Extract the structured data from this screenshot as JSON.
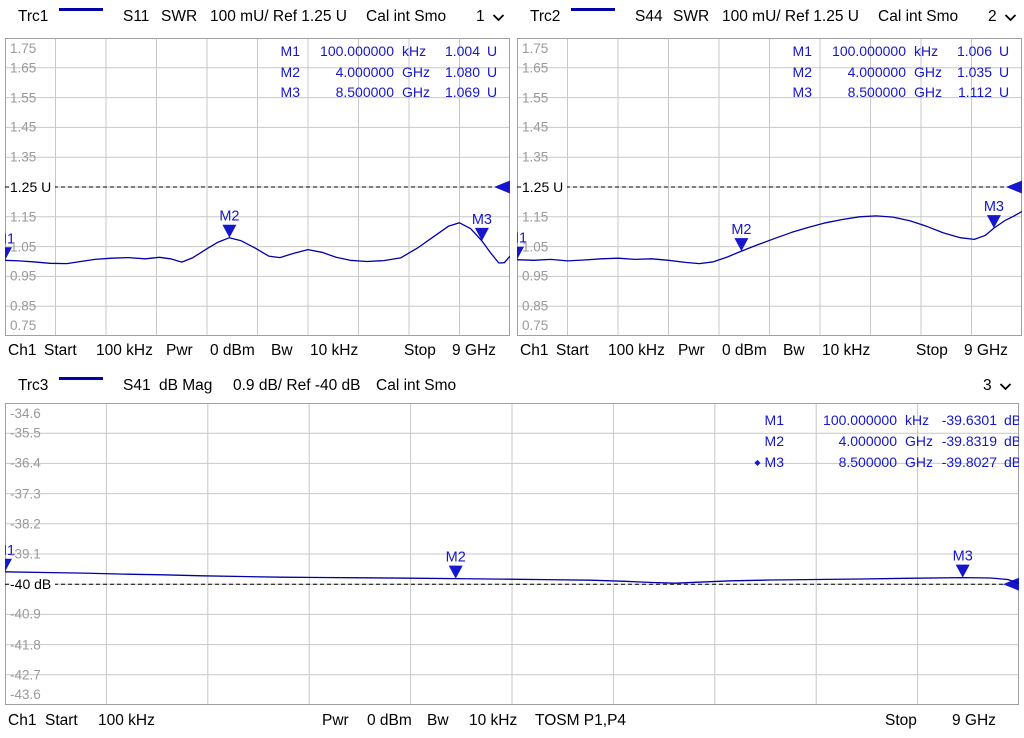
{
  "colors": {
    "trace": "#0000A8",
    "marker": "#1616CE",
    "grid": "#C8C8C8",
    "plot_border": "#A0A0A0",
    "axis_label": "#9A9A9A",
    "ref_line": "#000000",
    "text": "#000000",
    "background": "#FFFFFF"
  },
  "panels": [
    {
      "header": {
        "trace_label": "Trc1",
        "s_param": "S11",
        "format": "SWR",
        "scale": "100 mU/ Ref 1.25 U",
        "cal": "Cal int Smo",
        "channel": "1"
      },
      "axis": {
        "top": 1.75,
        "step": 0.1,
        "ref_value": 1.25,
        "ref_index": 5,
        "f_stop_ghz": 9,
        "labels": [
          "1.75",
          "1.65",
          "1.55",
          "1.45",
          "1.35",
          "1.25 U",
          "1.15",
          "1.05",
          "0.95",
          "0.85",
          "0.75"
        ]
      },
      "markers": [
        {
          "name": "M1",
          "freq_ghz": 0.0001,
          "value": 1.004,
          "freq_text": "100.000000",
          "freq_unit": "kHz",
          "value_text": "1.004",
          "value_unit": "U",
          "active": false
        },
        {
          "name": "M2",
          "freq_ghz": 4.0,
          "value": 1.08,
          "freq_text": "4.000000",
          "freq_unit": "GHz",
          "value_text": "1.080",
          "value_unit": "U",
          "active": false
        },
        {
          "name": "M3",
          "freq_ghz": 8.5,
          "value": 1.069,
          "freq_text": "8.500000",
          "freq_unit": "GHz",
          "value_text": "1.069",
          "value_unit": "U",
          "active": false
        }
      ],
      "trace": [
        [
          0,
          1.004
        ],
        [
          0.25,
          1.002
        ],
        [
          0.5,
          0.999
        ],
        [
          0.8,
          0.994
        ],
        [
          1.1,
          0.993
        ],
        [
          1.35,
          1.0
        ],
        [
          1.6,
          1.007
        ],
        [
          1.9,
          1.011
        ],
        [
          2.2,
          1.013
        ],
        [
          2.5,
          1.009
        ],
        [
          2.75,
          1.014
        ],
        [
          2.95,
          1.009
        ],
        [
          3.15,
          0.998
        ],
        [
          3.35,
          1.013
        ],
        [
          3.6,
          1.043
        ],
        [
          3.8,
          1.065
        ],
        [
          4.0,
          1.08
        ],
        [
          4.2,
          1.07
        ],
        [
          4.45,
          1.046
        ],
        [
          4.7,
          1.018
        ],
        [
          4.9,
          1.013
        ],
        [
          5.15,
          1.028
        ],
        [
          5.4,
          1.04
        ],
        [
          5.65,
          1.031
        ],
        [
          5.9,
          1.014
        ],
        [
          6.15,
          1.004
        ],
        [
          6.45,
          1.0
        ],
        [
          6.75,
          1.003
        ],
        [
          7.05,
          1.012
        ],
        [
          7.35,
          1.045
        ],
        [
          7.65,
          1.085
        ],
        [
          7.9,
          1.118
        ],
        [
          8.1,
          1.13
        ],
        [
          8.3,
          1.11
        ],
        [
          8.5,
          1.069
        ],
        [
          8.65,
          1.03
        ],
        [
          8.8,
          0.995
        ],
        [
          8.9,
          0.996
        ],
        [
          9.0,
          1.018
        ]
      ],
      "footer": [
        "Ch1",
        "Start",
        "100 kHz",
        "Pwr",
        "0 dBm",
        "Bw",
        "10 kHz",
        "Stop",
        "9 GHz"
      ]
    },
    {
      "header": {
        "trace_label": "Trc2",
        "s_param": "S44",
        "format": "SWR",
        "scale": "100 mU/ Ref 1.25 U",
        "cal": "Cal int Smo",
        "channel": "2"
      },
      "axis": {
        "top": 1.75,
        "step": 0.1,
        "ref_value": 1.25,
        "ref_index": 5,
        "f_stop_ghz": 9,
        "labels": [
          "1.75",
          "1.65",
          "1.55",
          "1.45",
          "1.35",
          "1.25 U",
          "1.15",
          "1.05",
          "0.95",
          "0.85",
          "0.75"
        ]
      },
      "markers": [
        {
          "name": "M1",
          "freq_ghz": 0.0001,
          "value": 1.006,
          "freq_text": "100.000000",
          "freq_unit": "kHz",
          "value_text": "1.006",
          "value_unit": "U",
          "active": false
        },
        {
          "name": "M2",
          "freq_ghz": 4.0,
          "value": 1.035,
          "freq_text": "4.000000",
          "freq_unit": "GHz",
          "value_text": "1.035",
          "value_unit": "U",
          "active": false
        },
        {
          "name": "M3",
          "freq_ghz": 8.5,
          "value": 1.112,
          "freq_text": "8.500000",
          "freq_unit": "GHz",
          "value_text": "1.112",
          "value_unit": "U",
          "active": false
        }
      ],
      "trace": [
        [
          0,
          1.006
        ],
        [
          0.3,
          1.004
        ],
        [
          0.6,
          1.007
        ],
        [
          0.9,
          1.002
        ],
        [
          1.2,
          1.005
        ],
        [
          1.5,
          1.009
        ],
        [
          1.8,
          1.011
        ],
        [
          2.1,
          1.007
        ],
        [
          2.4,
          1.009
        ],
        [
          2.7,
          1.004
        ],
        [
          3.0,
          0.997
        ],
        [
          3.25,
          0.993
        ],
        [
          3.5,
          0.999
        ],
        [
          3.75,
          1.015
        ],
        [
          4.0,
          1.035
        ],
        [
          4.3,
          1.057
        ],
        [
          4.6,
          1.078
        ],
        [
          4.9,
          1.098
        ],
        [
          5.2,
          1.115
        ],
        [
          5.5,
          1.13
        ],
        [
          5.8,
          1.141
        ],
        [
          6.1,
          1.15
        ],
        [
          6.4,
          1.153
        ],
        [
          6.7,
          1.149
        ],
        [
          7.0,
          1.137
        ],
        [
          7.3,
          1.118
        ],
        [
          7.6,
          1.096
        ],
        [
          7.9,
          1.08
        ],
        [
          8.15,
          1.074
        ],
        [
          8.35,
          1.088
        ],
        [
          8.5,
          1.112
        ],
        [
          8.7,
          1.138
        ],
        [
          8.85,
          1.152
        ],
        [
          9.0,
          1.168
        ]
      ],
      "footer": [
        "Ch1",
        "Start",
        "100 kHz",
        "Pwr",
        "0 dBm",
        "Bw",
        "10 kHz",
        "Stop",
        "9 GHz"
      ]
    },
    {
      "header": {
        "trace_label": "Trc3",
        "s_param": "S41",
        "format": "dB Mag",
        "scale": "0.9 dB/ Ref -40 dB",
        "cal": "Cal int Smo",
        "channel": "3"
      },
      "axis": {
        "top": -34.6,
        "step": 0.9,
        "ref_value": -40,
        "ref_index": 6,
        "f_stop_ghz": 9,
        "labels": [
          "-34.6",
          "-35.5",
          "-36.4",
          "-37.3",
          "-38.2",
          "-39.1",
          "-40 dB",
          "-40.9",
          "-41.8",
          "-42.7",
          "-43.6"
        ]
      },
      "markers": [
        {
          "name": "M1",
          "freq_ghz": 0.0001,
          "value": -39.6301,
          "freq_text": "100.000000",
          "freq_unit": "kHz",
          "value_text": "-39.6301",
          "value_unit": "dB",
          "active": false
        },
        {
          "name": "M2",
          "freq_ghz": 4.0,
          "value": -39.8319,
          "freq_text": "4.000000",
          "freq_unit": "GHz",
          "value_text": "-39.8319",
          "value_unit": "dB",
          "active": false
        },
        {
          "name": "M3",
          "freq_ghz": 8.5,
          "value": -39.8027,
          "freq_text": "8.500000",
          "freq_unit": "GHz",
          "value_text": "-39.8027",
          "value_unit": "dB",
          "active": true
        }
      ],
      "trace": [
        [
          0,
          -39.63
        ],
        [
          0.35,
          -39.65
        ],
        [
          0.7,
          -39.67
        ],
        [
          1.05,
          -39.7
        ],
        [
          1.4,
          -39.72
        ],
        [
          1.75,
          -39.75
        ],
        [
          2.1,
          -39.77
        ],
        [
          2.45,
          -39.79
        ],
        [
          2.8,
          -39.8
        ],
        [
          3.2,
          -39.81
        ],
        [
          3.6,
          -39.82
        ],
        [
          4.0,
          -39.8319
        ],
        [
          4.4,
          -39.848
        ],
        [
          4.8,
          -39.862
        ],
        [
          5.2,
          -39.88
        ],
        [
          5.5,
          -39.915
        ],
        [
          5.75,
          -39.95
        ],
        [
          5.95,
          -39.97
        ],
        [
          6.15,
          -39.94
        ],
        [
          6.45,
          -39.9
        ],
        [
          6.8,
          -39.875
        ],
        [
          7.2,
          -39.86
        ],
        [
          7.6,
          -39.845
        ],
        [
          8.0,
          -39.825
        ],
        [
          8.5,
          -39.8027
        ],
        [
          8.75,
          -39.815
        ],
        [
          8.9,
          -39.86
        ],
        [
          9.0,
          -39.97
        ]
      ],
      "footer": [
        "Ch1",
        "Start",
        "100 kHz",
        "Pwr",
        "0 dBm",
        "Bw",
        "10 kHz",
        "TOSM P1,P4",
        "Stop",
        "9 GHz"
      ]
    }
  ]
}
